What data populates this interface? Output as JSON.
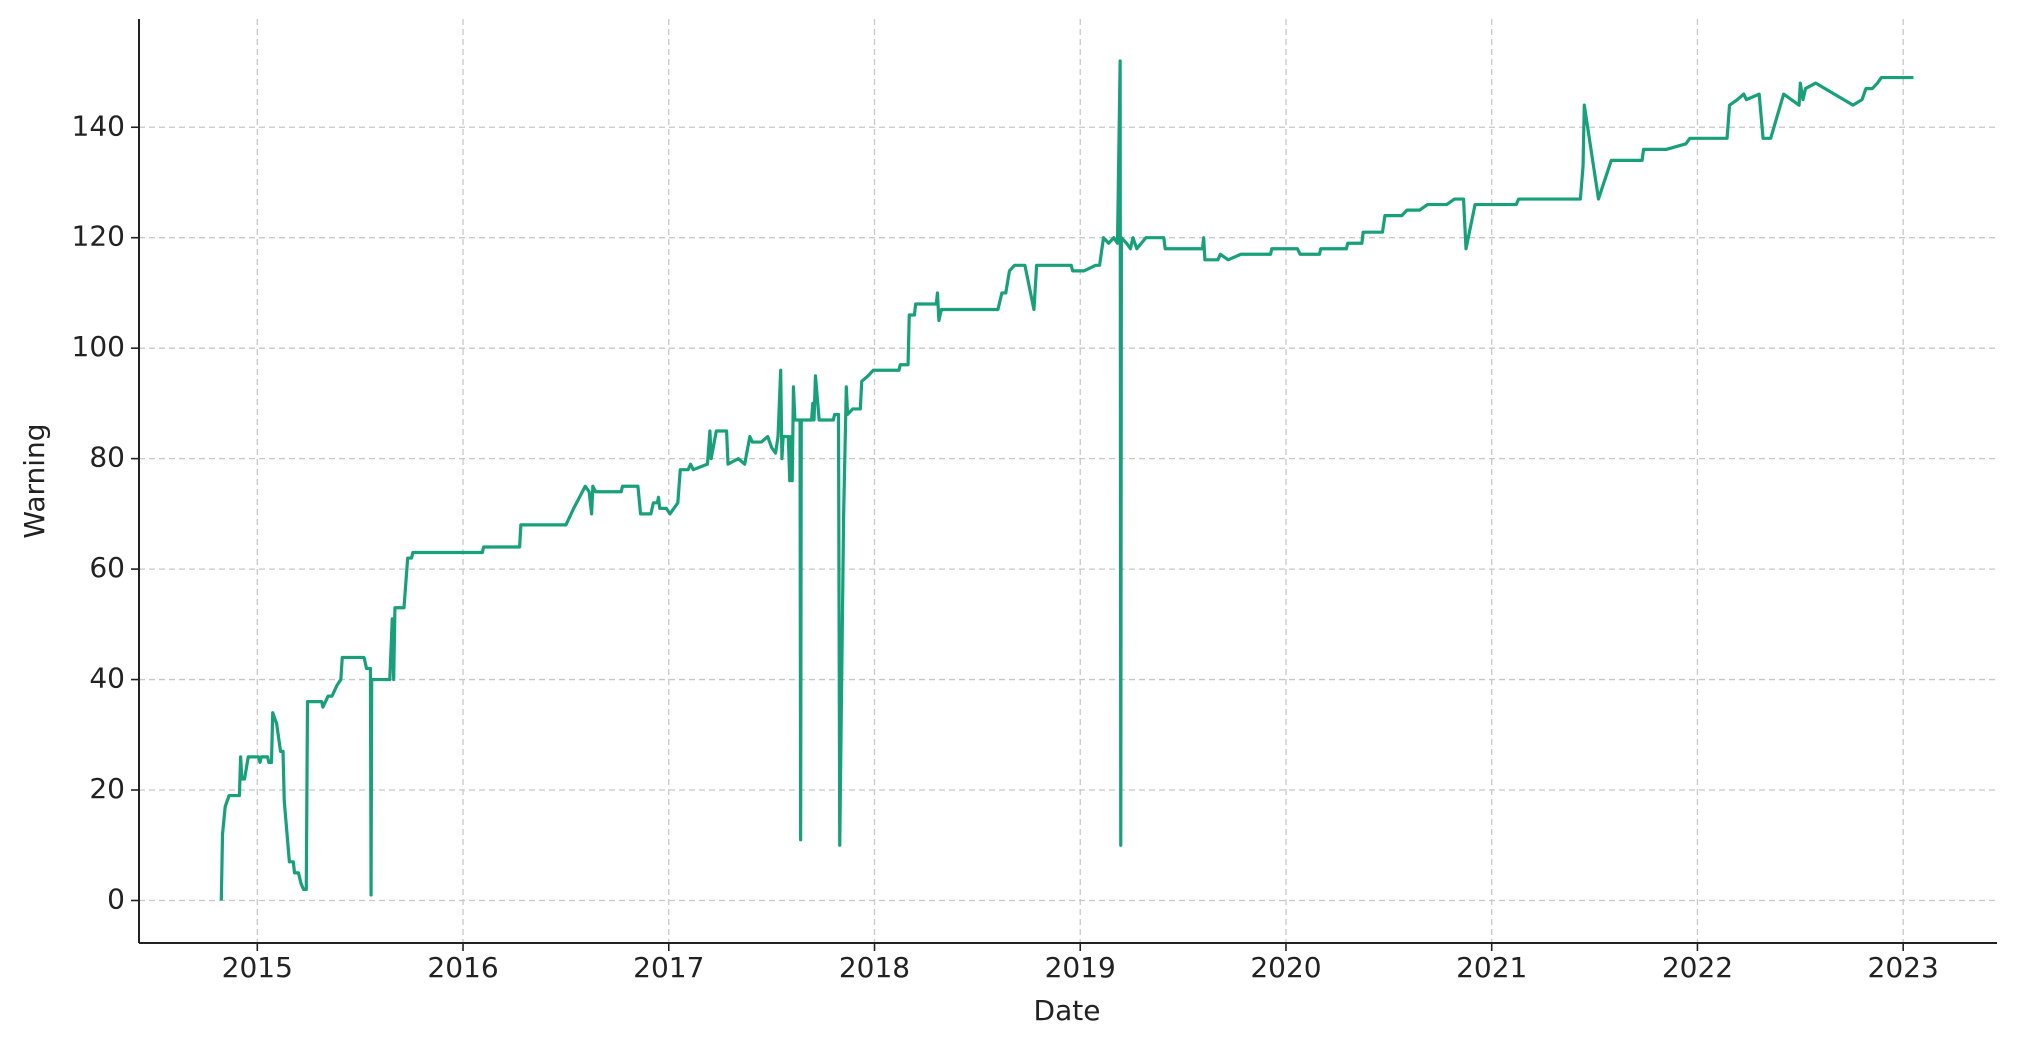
{
  "chart_data": {
    "type": "line",
    "xlabel": "Date",
    "ylabel": "Warning",
    "color": "#17a07a",
    "grid": true,
    "xlim": [
      2014.425,
      2023.456
    ],
    "xticks": [
      2015,
      2016,
      2017,
      2018,
      2019,
      2020,
      2021,
      2022,
      2023
    ],
    "ylim": [
      -7.7,
      159.6
    ],
    "yticks": [
      0,
      20,
      40,
      60,
      80,
      100,
      120,
      140
    ],
    "x": [
      2014.825,
      2014.831,
      2014.844,
      2014.863,
      2014.913,
      2014.919,
      2014.925,
      2014.938,
      2014.956,
      2015.006,
      2015.013,
      2015.019,
      2015.05,
      2015.056,
      2015.069,
      2015.075,
      2015.094,
      2015.113,
      2015.125,
      2015.131,
      2015.156,
      2015.175,
      2015.181,
      2015.2,
      2015.213,
      2015.225,
      2015.238,
      2015.244,
      2015.313,
      2015.319,
      2015.344,
      2015.363,
      2015.388,
      2015.406,
      2015.413,
      2015.519,
      2015.531,
      2015.55,
      2015.553,
      2015.556,
      2015.644,
      2015.656,
      2015.663,
      2015.669,
      2015.713,
      2015.719,
      2015.731,
      2015.75,
      2015.756,
      2016.094,
      2016.1,
      2016.275,
      2016.281,
      2016.5,
      2016.538,
      2016.594,
      2016.613,
      2016.625,
      2016.631,
      2016.644,
      2016.769,
      2016.775,
      2016.85,
      2016.863,
      2016.913,
      2016.925,
      2016.944,
      2016.95,
      2016.956,
      2016.988,
      2017.006,
      2017.044,
      2017.056,
      2017.094,
      2017.106,
      2017.119,
      2017.188,
      2017.2,
      2017.206,
      2017.231,
      2017.281,
      2017.288,
      2017.338,
      2017.369,
      2017.394,
      2017.406,
      2017.45,
      2017.481,
      2017.5,
      2017.519,
      2017.531,
      2017.544,
      2017.55,
      2017.556,
      2017.581,
      2017.588,
      2017.594,
      2017.6,
      2017.606,
      2017.613,
      2017.638,
      2017.641,
      2017.644,
      2017.694,
      2017.7,
      2017.706,
      2017.713,
      2017.731,
      2017.8,
      2017.806,
      2017.825,
      2017.831,
      2017.85,
      2017.863,
      2017.869,
      2017.894,
      2017.931,
      2017.938,
      2017.969,
      2017.994,
      2018.119,
      2018.125,
      2018.163,
      2018.169,
      2018.194,
      2018.2,
      2018.3,
      2018.306,
      2018.313,
      2018.325,
      2018.6,
      2018.619,
      2018.638,
      2018.656,
      2018.681,
      2018.731,
      2018.775,
      2018.788,
      2018.956,
      2018.963,
      2019.019,
      2019.075,
      2019.094,
      2019.113,
      2019.138,
      2019.163,
      2019.181,
      2019.194,
      2019.197,
      2019.2,
      2019.225,
      2019.244,
      2019.256,
      2019.275,
      2019.319,
      2019.406,
      2019.413,
      2019.594,
      2019.6,
      2019.606,
      2019.669,
      2019.681,
      2019.719,
      2019.781,
      2019.925,
      2019.931,
      2020.056,
      2020.069,
      2020.163,
      2020.169,
      2020.294,
      2020.3,
      2020.369,
      2020.375,
      2020.469,
      2020.481,
      2020.563,
      2020.588,
      2020.65,
      2020.688,
      2020.781,
      2020.819,
      2020.863,
      2020.875,
      2020.919,
      2021.119,
      2021.131,
      2021.431,
      2021.444,
      2021.45,
      2021.519,
      2021.581,
      2021.731,
      2021.738,
      2021.85,
      2021.944,
      2021.963,
      2022.144,
      2022.156,
      2022.194,
      2022.225,
      2022.238,
      2022.3,
      2022.319,
      2022.356,
      2022.419,
      2022.494,
      2022.5,
      2022.513,
      2022.525,
      2022.575,
      2022.756,
      2022.8,
      2022.819,
      2022.85,
      2022.875,
      2022.894,
      2023.05
    ],
    "values": [
      0,
      12,
      17,
      19,
      19,
      26,
      22,
      22,
      26,
      26,
      25,
      26,
      26,
      25,
      25,
      34,
      32,
      27,
      27,
      18,
      7,
      7,
      5,
      5,
      3,
      2,
      2,
      36,
      36,
      35,
      37,
      37,
      39,
      40,
      44,
      44,
      42,
      42,
      1,
      40,
      40,
      51,
      40,
      53,
      53,
      56,
      62,
      62,
      63,
      63,
      64,
      64,
      68,
      68,
      71,
      75,
      74,
      70,
      75,
      74,
      74,
      75,
      75,
      70,
      70,
      72,
      72,
      73,
      71,
      71,
      70,
      72,
      78,
      78,
      79,
      78,
      79,
      85,
      80,
      85,
      85,
      79,
      80,
      79,
      84,
      83,
      83,
      84,
      82,
      81,
      84,
      96,
      80,
      84,
      84,
      76,
      84,
      76,
      93,
      87,
      87,
      11,
      87,
      87,
      90,
      87,
      95,
      87,
      87,
      88,
      88,
      10,
      70,
      93,
      88,
      89,
      89,
      94,
      95,
      96,
      96,
      97,
      97,
      106,
      106,
      108,
      108,
      110,
      105,
      107,
      107,
      110,
      110,
      114,
      115,
      115,
      107,
      115,
      115,
      114,
      114,
      115,
      115,
      120,
      119,
      120,
      119,
      152,
      10,
      120,
      119,
      118,
      120,
      118,
      120,
      120,
      118,
      118,
      120,
      116,
      116,
      117,
      116,
      117,
      117,
      118,
      118,
      117,
      117,
      118,
      118,
      119,
      119,
      121,
      121,
      124,
      124,
      125,
      125,
      126,
      126,
      127,
      127,
      118,
      126,
      126,
      127,
      127,
      133,
      144,
      127,
      134,
      134,
      136,
      136,
      137,
      138,
      138,
      144,
      145,
      146,
      145,
      146,
      138,
      138,
      146,
      144,
      148,
      145,
      147,
      148,
      144,
      145,
      147,
      147,
      148,
      149,
      149
    ]
  }
}
